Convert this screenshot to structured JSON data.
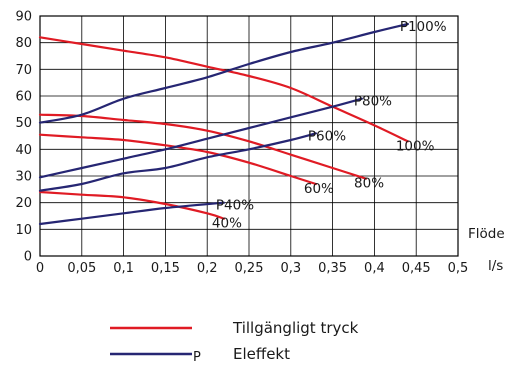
{
  "chart_data": {
    "type": "line",
    "x_unit": "l/s",
    "x_axis_label": "Flöde",
    "x_ticks": [
      "0",
      "0,05",
      "0,1",
      "0,15",
      "0,2",
      "0,25",
      "0,3",
      "0,35",
      "0,4",
      "0,45",
      "0,5"
    ],
    "y_ticks": [
      "0",
      "10",
      "20",
      "30",
      "40",
      "50",
      "60",
      "70",
      "80",
      "90"
    ],
    "xlim": [
      0,
      0.5
    ],
    "ylim": [
      0,
      90
    ],
    "grid": true,
    "series": [
      {
        "name": "100%",
        "group": "pressure",
        "color": "#e01b24",
        "points": [
          [
            0,
            82
          ],
          [
            0.05,
            79.5
          ],
          [
            0.1,
            77
          ],
          [
            0.15,
            74.5
          ],
          [
            0.2,
            71
          ],
          [
            0.25,
            67.5
          ],
          [
            0.3,
            63
          ],
          [
            0.35,
            56
          ],
          [
            0.4,
            49
          ],
          [
            0.44,
            43
          ]
        ]
      },
      {
        "name": "80%",
        "group": "pressure",
        "color": "#e01b24",
        "points": [
          [
            0,
            53
          ],
          [
            0.05,
            52.5
          ],
          [
            0.1,
            51
          ],
          [
            0.15,
            49.5
          ],
          [
            0.2,
            47
          ],
          [
            0.25,
            43
          ],
          [
            0.3,
            38
          ],
          [
            0.35,
            33
          ],
          [
            0.39,
            29
          ]
        ]
      },
      {
        "name": "60%",
        "group": "pressure",
        "color": "#e01b24",
        "points": [
          [
            0,
            45.5
          ],
          [
            0.05,
            44.5
          ],
          [
            0.1,
            43.5
          ],
          [
            0.15,
            41.5
          ],
          [
            0.2,
            39
          ],
          [
            0.25,
            35
          ],
          [
            0.3,
            30
          ],
          [
            0.33,
            27
          ]
        ]
      },
      {
        "name": "40%",
        "group": "pressure",
        "color": "#e01b24",
        "points": [
          [
            0,
            24
          ],
          [
            0.05,
            23
          ],
          [
            0.1,
            22
          ],
          [
            0.15,
            19.5
          ],
          [
            0.2,
            16
          ],
          [
            0.22,
            14
          ]
        ]
      },
      {
        "name": "P100%",
        "group": "power",
        "color": "#262673",
        "points": [
          [
            0,
            50
          ],
          [
            0.05,
            53
          ],
          [
            0.1,
            59
          ],
          [
            0.15,
            63
          ],
          [
            0.2,
            67
          ],
          [
            0.25,
            72
          ],
          [
            0.3,
            76.5
          ],
          [
            0.35,
            80
          ],
          [
            0.4,
            84
          ],
          [
            0.44,
            87
          ]
        ]
      },
      {
        "name": "P80%",
        "group": "power",
        "color": "#262673",
        "points": [
          [
            0,
            29.5
          ],
          [
            0.05,
            33
          ],
          [
            0.1,
            36.5
          ],
          [
            0.15,
            40
          ],
          [
            0.2,
            44
          ],
          [
            0.25,
            48
          ],
          [
            0.3,
            52
          ],
          [
            0.35,
            56
          ],
          [
            0.385,
            59
          ]
        ]
      },
      {
        "name": "P60%",
        "group": "power",
        "color": "#262673",
        "points": [
          [
            0,
            24.5
          ],
          [
            0.05,
            27
          ],
          [
            0.1,
            31
          ],
          [
            0.15,
            33
          ],
          [
            0.2,
            37
          ],
          [
            0.25,
            40
          ],
          [
            0.3,
            43.5
          ],
          [
            0.33,
            46
          ]
        ]
      },
      {
        "name": "P40%",
        "group": "power",
        "color": "#262673",
        "points": [
          [
            0,
            12
          ],
          [
            0.05,
            14
          ],
          [
            0.1,
            16
          ],
          [
            0.15,
            18
          ],
          [
            0.22,
            20
          ]
        ]
      }
    ]
  },
  "legend": {
    "placement": "bottom",
    "items": [
      {
        "group": "pressure",
        "color": "#e01b24",
        "prefix": "",
        "label": "Tillgängligt tryck"
      },
      {
        "group": "power",
        "color": "#262673",
        "prefix": "P",
        "label": "Eleffekt"
      }
    ]
  }
}
